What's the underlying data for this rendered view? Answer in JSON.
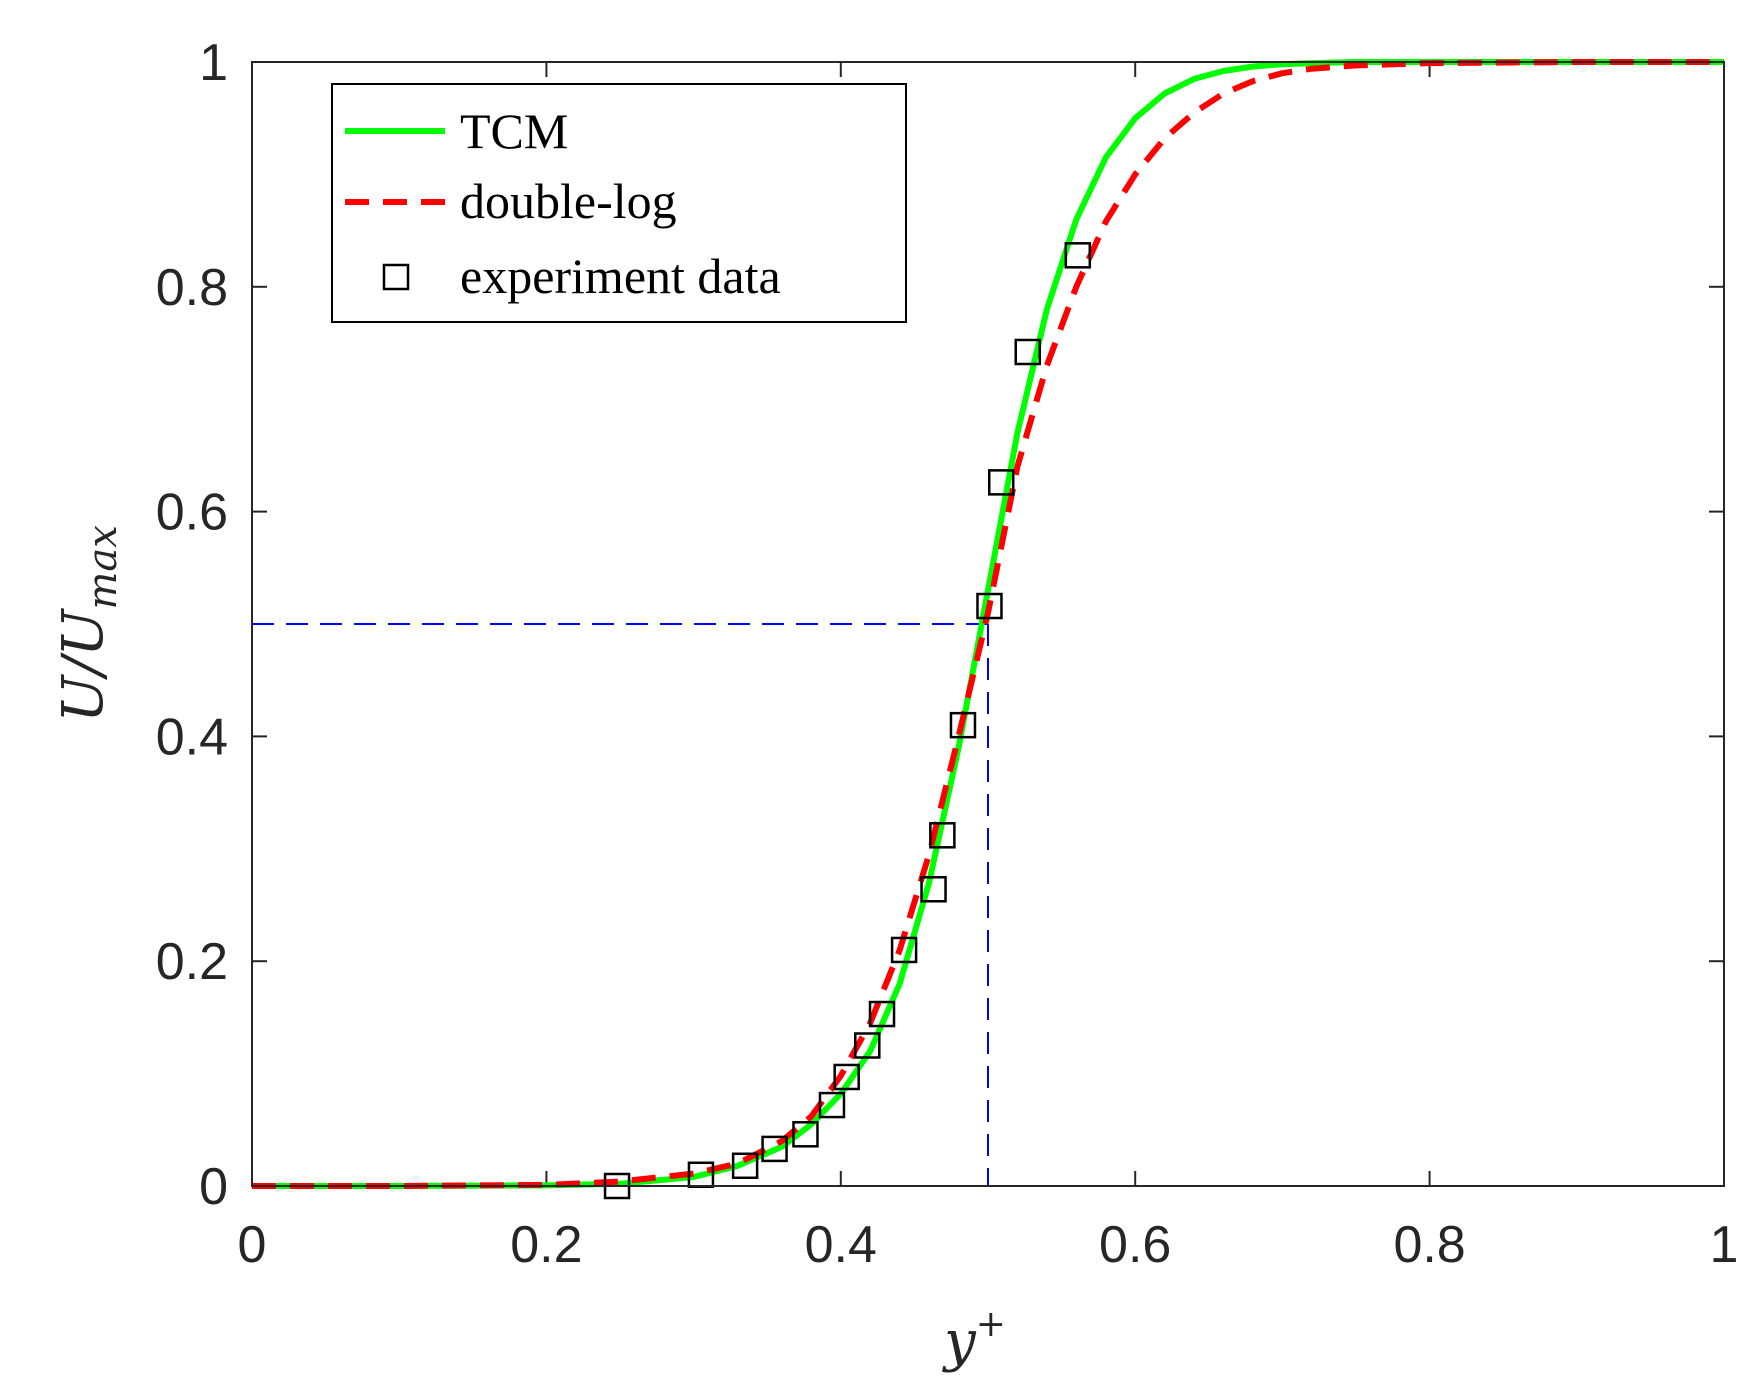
{
  "chart_data": {
    "type": "line",
    "xlabel": "y",
    "xlabel_sup": "+",
    "ylabel": "U/U",
    "ylabel_sub": "max",
    "xlim": [
      0,
      1
    ],
    "ylim": [
      0,
      1
    ],
    "xticks": [
      0,
      0.2,
      0.4,
      0.6,
      0.8,
      1
    ],
    "xtick_labels": [
      "0",
      "0.2",
      "0.4",
      "0.6",
      "0.8",
      "1"
    ],
    "yticks": [
      0,
      0.2,
      0.4,
      0.6,
      0.8,
      1
    ],
    "ytick_labels": [
      "0",
      "0.2",
      "0.4",
      "0.6",
      "0.8",
      "1"
    ],
    "legend_position": "top-left",
    "series": [
      {
        "name": "TCM",
        "style": "solid",
        "color": "#00ff00",
        "x": [
          0,
          0.1,
          0.2,
          0.25,
          0.3,
          0.33,
          0.36,
          0.38,
          0.4,
          0.42,
          0.44,
          0.46,
          0.48,
          0.49,
          0.5,
          0.51,
          0.52,
          0.54,
          0.56,
          0.58,
          0.6,
          0.62,
          0.64,
          0.66,
          0.68,
          0.7,
          0.72,
          0.75,
          0.8,
          0.9,
          1
        ],
        "y": [
          0,
          0,
          0.0005,
          0.002,
          0.008,
          0.018,
          0.035,
          0.055,
          0.082,
          0.12,
          0.18,
          0.27,
          0.39,
          0.46,
          0.53,
          0.6,
          0.67,
          0.78,
          0.86,
          0.915,
          0.95,
          0.972,
          0.985,
          0.992,
          0.996,
          0.998,
          0.999,
          1,
          1,
          1,
          1
        ]
      },
      {
        "name": "double-log",
        "style": "dashed",
        "color": "#ff0000",
        "x": [
          0,
          0.1,
          0.2,
          0.25,
          0.3,
          0.33,
          0.36,
          0.38,
          0.4,
          0.42,
          0.44,
          0.46,
          0.48,
          0.49,
          0.5,
          0.51,
          0.52,
          0.54,
          0.56,
          0.58,
          0.6,
          0.62,
          0.64,
          0.66,
          0.68,
          0.7,
          0.72,
          0.75,
          0.8,
          0.9,
          1
        ],
        "y": [
          0,
          0,
          0.001,
          0.004,
          0.011,
          0.02,
          0.04,
          0.062,
          0.098,
          0.145,
          0.21,
          0.295,
          0.4,
          0.455,
          0.51,
          0.575,
          0.64,
          0.73,
          0.8,
          0.858,
          0.9,
          0.932,
          0.955,
          0.972,
          0.983,
          0.99,
          0.994,
          0.997,
          0.999,
          1,
          1
        ]
      },
      {
        "name": "experiment data",
        "style": "markers",
        "marker": "square",
        "color": "#000000",
        "x": [
          0.248,
          0.305,
          0.335,
          0.355,
          0.376,
          0.394,
          0.404,
          0.418,
          0.428,
          0.443,
          0.463,
          0.469,
          0.483,
          0.501,
          0.509,
          0.527,
          0.561
        ],
        "y": [
          0.0,
          0.01,
          0.018,
          0.033,
          0.046,
          0.072,
          0.097,
          0.125,
          0.153,
          0.21,
          0.264,
          0.312,
          0.41,
          0.516,
          0.626,
          0.742,
          0.828
        ]
      }
    ],
    "reference_lines": {
      "color": "#0000ff",
      "style": "dashed",
      "x": 0.5,
      "y": 0.5
    }
  }
}
